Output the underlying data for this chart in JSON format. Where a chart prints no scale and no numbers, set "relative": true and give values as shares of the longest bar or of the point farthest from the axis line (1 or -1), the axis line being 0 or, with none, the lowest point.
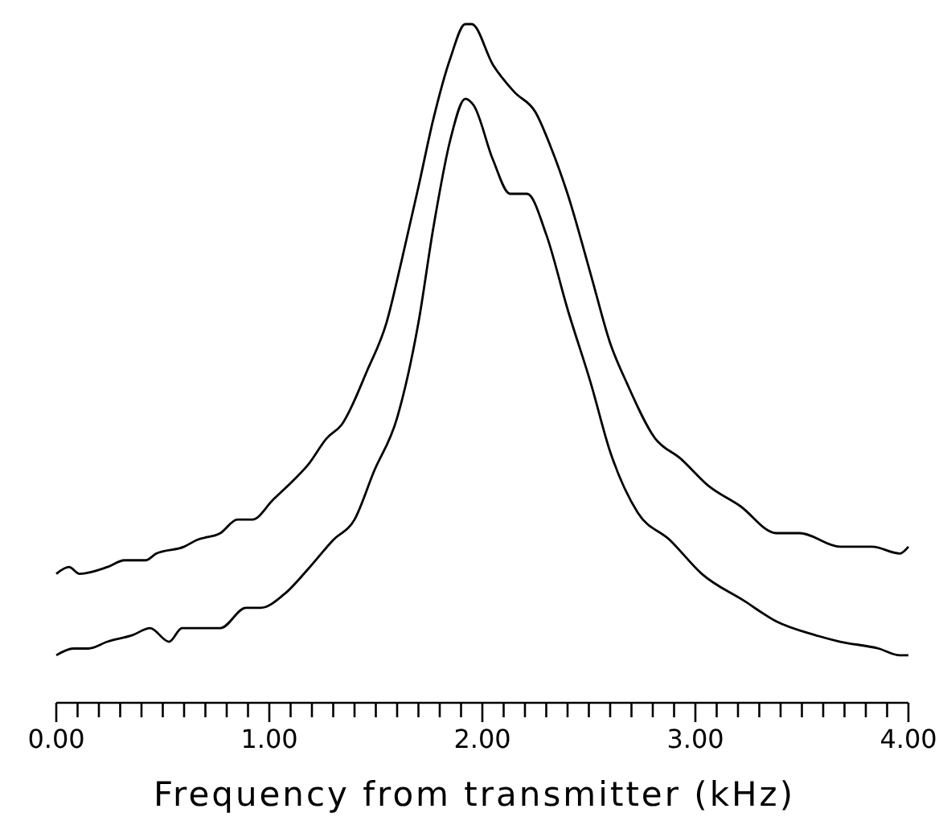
{
  "chart_data": {
    "type": "line",
    "xlabel": "Frequency from transmitter (kHz)",
    "relative": true,
    "xlim": [
      0,
      4
    ],
    "xticks": [
      {
        "value": 0,
        "label": "0.00"
      },
      {
        "value": 0.1,
        "label": null
      },
      {
        "value": 0.2,
        "label": null
      },
      {
        "value": 0.3,
        "label": null
      },
      {
        "value": 0.4,
        "label": null
      },
      {
        "value": 0.5,
        "label": null
      },
      {
        "value": 0.6,
        "label": null
      },
      {
        "value": 0.7,
        "label": null
      },
      {
        "value": 0.8,
        "label": null
      },
      {
        "value": 0.9,
        "label": null
      },
      {
        "value": 1,
        "label": "1.00"
      },
      {
        "value": 1.1,
        "label": null
      },
      {
        "value": 1.2,
        "label": null
      },
      {
        "value": 1.3,
        "label": null
      },
      {
        "value": 1.4,
        "label": null
      },
      {
        "value": 1.5,
        "label": null
      },
      {
        "value": 1.6,
        "label": null
      },
      {
        "value": 1.7,
        "label": null
      },
      {
        "value": 1.8,
        "label": null
      },
      {
        "value": 1.9,
        "label": null
      },
      {
        "value": 2,
        "label": "2.00"
      },
      {
        "value": 2.1,
        "label": null
      },
      {
        "value": 2.2,
        "label": null
      },
      {
        "value": 2.3,
        "label": null
      },
      {
        "value": 2.4,
        "label": null
      },
      {
        "value": 2.5,
        "label": null
      },
      {
        "value": 2.6,
        "label": null
      },
      {
        "value": 2.7,
        "label": null
      },
      {
        "value": 2.8,
        "label": null
      },
      {
        "value": 2.9,
        "label": null
      },
      {
        "value": 3,
        "label": "3.00"
      },
      {
        "value": 3.1,
        "label": null
      },
      {
        "value": 3.2,
        "label": null
      },
      {
        "value": 3.3,
        "label": null
      },
      {
        "value": 3.4,
        "label": null
      },
      {
        "value": 3.5,
        "label": null
      },
      {
        "value": 3.6,
        "label": null
      },
      {
        "value": 3.7,
        "label": null
      },
      {
        "value": 3.8,
        "label": null
      },
      {
        "value": 3.9,
        "label": null
      },
      {
        "value": 4,
        "label": "4.00"
      }
    ],
    "series": [
      {
        "color": "#000000",
        "x": [
          0,
          0.06,
          0.11,
          0.24,
          0.32,
          0.42,
          0.47,
          0.6,
          0.66,
          0.77,
          0.85,
          0.92,
          1.02,
          1.12,
          1.18,
          1.27,
          1.34,
          1.46,
          1.55,
          1.62,
          1.7,
          1.77,
          1.85,
          1.92,
          1.95,
          2.05,
          2.15,
          2.25,
          2.32,
          2.4,
          2.51,
          2.6,
          2.68,
          2.81,
          2.93,
          3.06,
          3.21,
          3.38,
          3.49,
          3.68,
          3.83,
          3.96,
          4
        ],
        "values": [
          0.19,
          0.2,
          0.19,
          0.2,
          0.21,
          0.21,
          0.22,
          0.23,
          0.24,
          0.25,
          0.27,
          0.27,
          0.3,
          0.33,
          0.35,
          0.39,
          0.41,
          0.49,
          0.56,
          0.65,
          0.76,
          0.86,
          0.95,
          1,
          1,
          0.94,
          0.9,
          0.87,
          0.82,
          0.75,
          0.63,
          0.53,
          0.47,
          0.39,
          0.36,
          0.32,
          0.29,
          0.25,
          0.25,
          0.23,
          0.23,
          0.22,
          0.23
        ]
      },
      {
        "color": "#000000",
        "x": [
          0,
          0.08,
          0.15,
          0.24,
          0.36,
          0.44,
          0.53,
          0.59,
          0.69,
          0.77,
          0.89,
          0.96,
          1.07,
          1.19,
          1.3,
          1.4,
          1.49,
          1.6,
          1.7,
          1.77,
          1.85,
          1.92,
          1.96,
          2.05,
          2.13,
          2.21,
          2.3,
          2.4,
          2.51,
          2.6,
          2.73,
          2.88,
          3.03,
          3.23,
          3.38,
          3.56,
          3.68,
          3.86,
          3.96,
          4
        ],
        "values": [
          0.07,
          0.08,
          0.08,
          0.09,
          0.1,
          0.11,
          0.09,
          0.11,
          0.11,
          0.11,
          0.14,
          0.14,
          0.16,
          0.2,
          0.24,
          0.27,
          0.34,
          0.42,
          0.56,
          0.7,
          0.83,
          0.89,
          0.88,
          0.8,
          0.75,
          0.75,
          0.69,
          0.58,
          0.47,
          0.37,
          0.28,
          0.24,
          0.19,
          0.15,
          0.12,
          0.1,
          0.09,
          0.08,
          0.07,
          0.07
        ]
      }
    ]
  }
}
